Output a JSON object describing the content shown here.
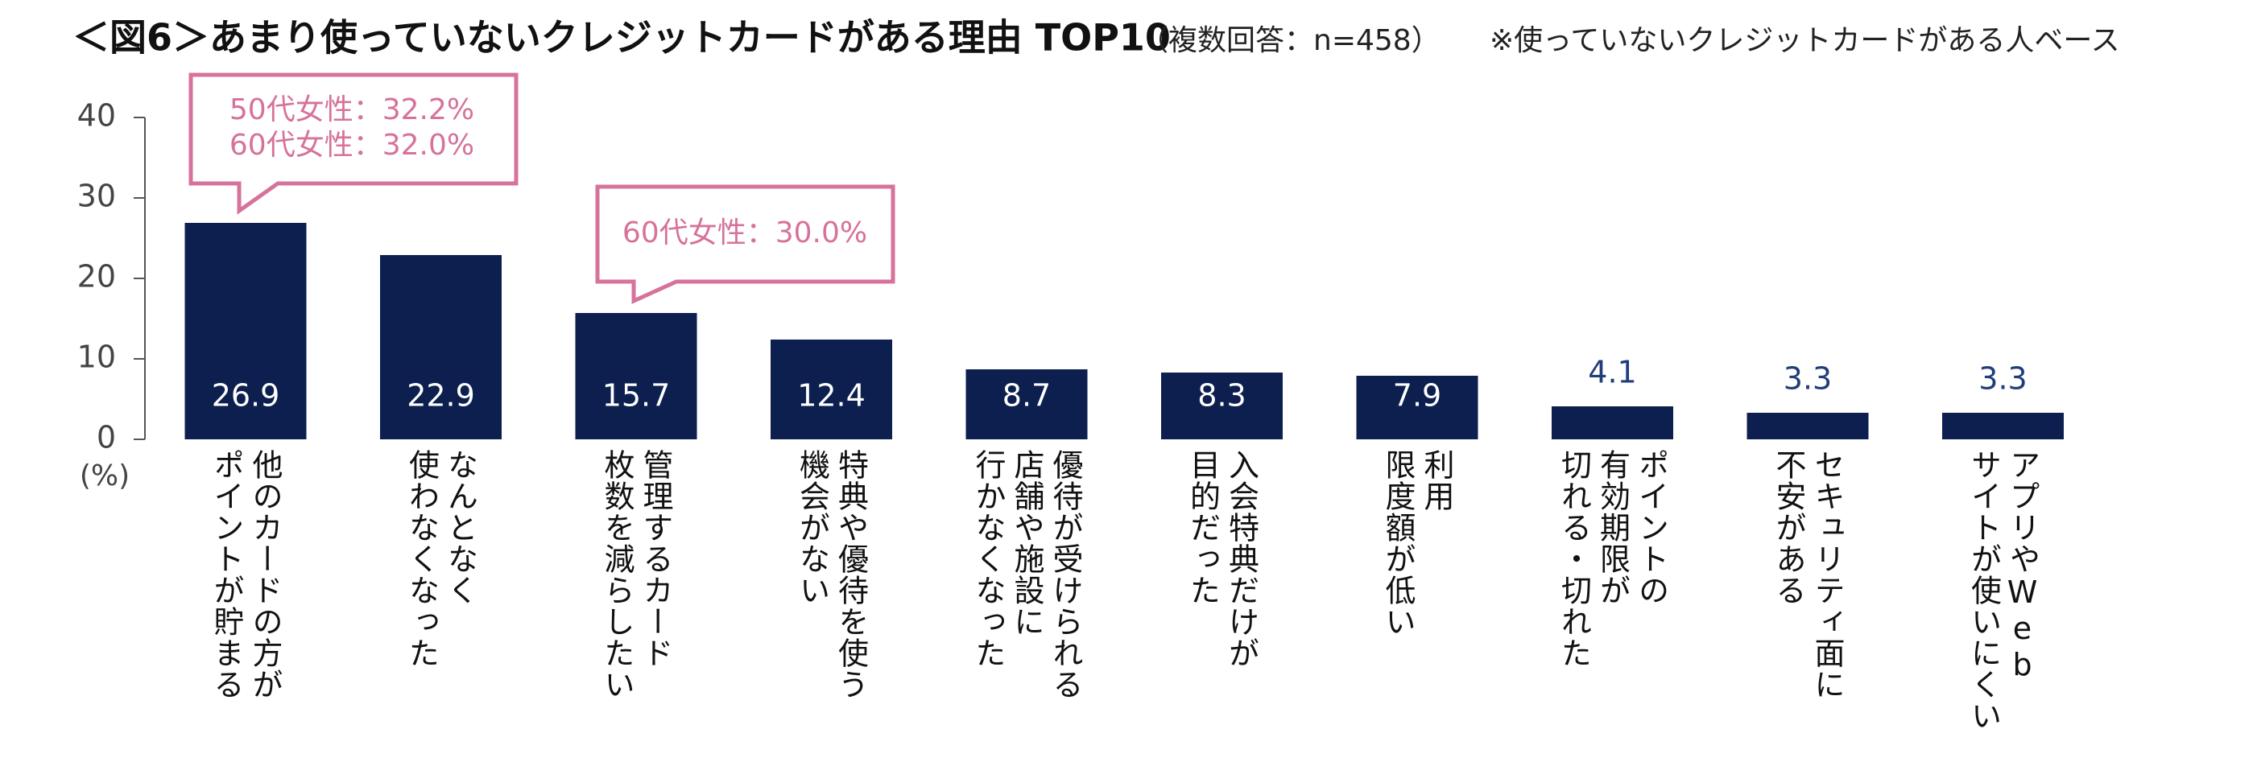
{
  "chart_data": {
    "type": "bar",
    "title": "＜図6＞あまり使っていないクレジットカードがある理由 TOP10",
    "subtitle": "（複数回答：n=458）",
    "note": "※使っていないクレジットカードがある人ベース",
    "y_label": "(%)",
    "categories": [
      "他のカードの方が\nポイントが貯まる",
      "なんとなく\n使わなくなった",
      "管理するカード\n枚数を減らしたい",
      "特典や優待を使う\n機会がない",
      "優待が受けられる\n店舗や施設に\n行かなくなった",
      "入会特典だけが\n目的だった",
      "利用\n限度額が低い",
      "ポイントの\n有効期限が\n切れる・切れた",
      "セキュリティ面に\n不安がある",
      "アプリやWeb\nサイトが使いにくい"
    ],
    "values": [
      26.9,
      22.9,
      15.7,
      12.4,
      8.7,
      8.3,
      7.9,
      4.1,
      3.3,
      3.3
    ],
    "color": "#0c1f4f",
    "ylim": [
      0,
      40
    ],
    "yticks": [
      0,
      10,
      20,
      30,
      40
    ],
    "annotations": [
      [
        "50代女性：32.2%",
        "60代女性：32.0%"
      ],
      [
        "60代女性：30.0%"
      ]
    ]
  }
}
